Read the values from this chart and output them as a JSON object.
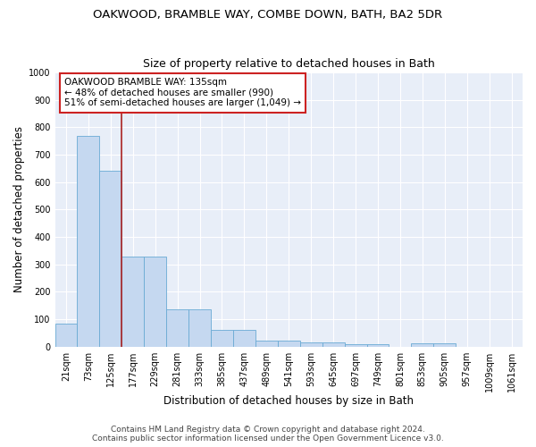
{
  "title1": "OAKWOOD, BRAMBLE WAY, COMBE DOWN, BATH, BA2 5DR",
  "title2": "Size of property relative to detached houses in Bath",
  "xlabel": "Distribution of detached houses by size in Bath",
  "ylabel": "Number of detached properties",
  "bar_labels": [
    "21sqm",
    "73sqm",
    "125sqm",
    "177sqm",
    "229sqm",
    "281sqm",
    "333sqm",
    "385sqm",
    "437sqm",
    "489sqm",
    "541sqm",
    "593sqm",
    "645sqm",
    "697sqm",
    "749sqm",
    "801sqm",
    "853sqm",
    "905sqm",
    "957sqm",
    "1009sqm",
    "1061sqm"
  ],
  "bar_values": [
    83,
    770,
    640,
    330,
    330,
    135,
    135,
    60,
    60,
    22,
    22,
    14,
    14,
    10,
    10,
    0,
    12,
    12,
    0,
    0,
    0
  ],
  "bar_color": "#c5d8f0",
  "bar_edge_color": "#6aaad4",
  "background_color": "#e8eef8",
  "grid_color": "#ffffff",
  "vline_x": 2,
  "vline_color": "#aa2222",
  "annotation_text": "OAKWOOD BRAMBLE WAY: 135sqm\n← 48% of detached houses are smaller (990)\n51% of semi-detached houses are larger (1,049) →",
  "annotation_box_facecolor": "#ffffff",
  "annotation_box_edgecolor": "#cc2222",
  "ylim": [
    0,
    1000
  ],
  "yticks": [
    0,
    100,
    200,
    300,
    400,
    500,
    600,
    700,
    800,
    900,
    1000
  ],
  "footer1": "Contains HM Land Registry data © Crown copyright and database right 2024.",
  "footer2": "Contains public sector information licensed under the Open Government Licence v3.0.",
  "title1_fontsize": 9.5,
  "title2_fontsize": 9,
  "xlabel_fontsize": 8.5,
  "ylabel_fontsize": 8.5,
  "tick_fontsize": 7,
  "annotation_fontsize": 7.5,
  "footer_fontsize": 6.5
}
